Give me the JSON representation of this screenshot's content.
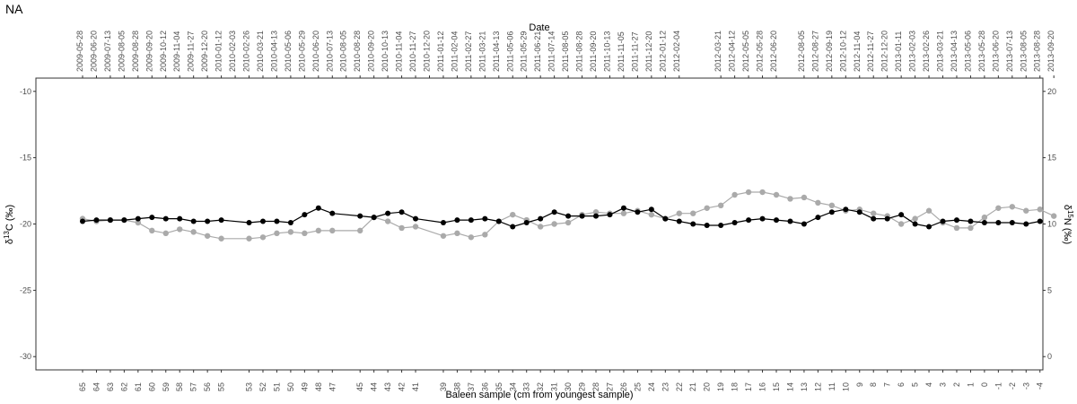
{
  "chart_data": {
    "type": "line",
    "tag": "NA",
    "xlabel": "Baleen sample (cm from youngest sample)",
    "top_axis_label": "Date",
    "ylabel_left": {
      "delta": "δ",
      "sup": "13",
      "rest": "C (‰)"
    },
    "ylabel_right": {
      "delta": "δ",
      "sup": "15",
      "rest": "N (‰)"
    },
    "ylim_left": [
      -31,
      -9
    ],
    "ylim_right": [
      -1,
      21
    ],
    "yticks_left": [
      -10,
      -15,
      -20,
      -25,
      -30
    ],
    "yticks_right": [
      20,
      15,
      10,
      5,
      0
    ],
    "x_ticks": [
      65,
      64,
      63,
      62,
      61,
      60,
      59,
      58,
      57,
      56,
      55,
      53,
      52,
      51,
      50,
      49,
      48,
      47,
      45,
      44,
      43,
      42,
      41,
      39,
      38,
      37,
      36,
      35,
      34,
      33,
      32,
      31,
      30,
      29,
      28,
      27,
      26,
      25,
      24,
      23,
      22,
      21,
      20,
      19,
      18,
      17,
      16,
      15,
      14,
      13,
      12,
      11,
      10,
      9,
      8,
      7,
      6,
      5,
      4,
      3,
      2,
      1,
      0,
      -1,
      -2,
      -3,
      -4
    ],
    "dates": [
      {
        "x": 65,
        "label": "2009-05-28"
      },
      {
        "x": 64,
        "label": "2009-06-20"
      },
      {
        "x": 63,
        "label": "2009-07-13"
      },
      {
        "x": 62,
        "label": "2009-08-05"
      },
      {
        "x": 61,
        "label": "2009-08-28"
      },
      {
        "x": 60,
        "label": "2009-09-20"
      },
      {
        "x": 59,
        "label": "2009-10-12"
      },
      {
        "x": 58,
        "label": "2009-11-04"
      },
      {
        "x": 57,
        "label": "2009-11-27"
      },
      {
        "x": 56,
        "label": "2009-12-20"
      },
      {
        "x": 55,
        "label": "2010-01-12"
      },
      {
        "x": 54,
        "label": "2010-02-03"
      },
      {
        "x": 53,
        "label": "2010-02-26"
      },
      {
        "x": 52,
        "label": "2010-03-21"
      },
      {
        "x": 51,
        "label": "2010-04-13"
      },
      {
        "x": 50,
        "label": "2010-05-06"
      },
      {
        "x": 49,
        "label": "2010-05-29"
      },
      {
        "x": 48,
        "label": "2010-06-20"
      },
      {
        "x": 47,
        "label": "2010-07-13"
      },
      {
        "x": 46,
        "label": "2010-08-05"
      },
      {
        "x": 45,
        "label": "2010-08-28"
      },
      {
        "x": 44,
        "label": "2010-09-20"
      },
      {
        "x": 43,
        "label": "2010-10-13"
      },
      {
        "x": 42,
        "label": "2010-11-04"
      },
      {
        "x": 41,
        "label": "2010-11-27"
      },
      {
        "x": 40,
        "label": "2010-12-20"
      },
      {
        "x": 39,
        "label": "2011-01-12"
      },
      {
        "x": 38,
        "label": "2011-02-04"
      },
      {
        "x": 37,
        "label": "2011-02-27"
      },
      {
        "x": 36,
        "label": "2011-03-21"
      },
      {
        "x": 35,
        "label": "2011-04-13"
      },
      {
        "x": 34,
        "label": "2011-05-06"
      },
      {
        "x": 33,
        "label": "2011-05-29"
      },
      {
        "x": 32,
        "label": "2011-06-21"
      },
      {
        "x": 31,
        "label": "2011-07-14"
      },
      {
        "x": 30,
        "label": "2011-08-05"
      },
      {
        "x": 29,
        "label": "2011-08-28"
      },
      {
        "x": 28,
        "label": "2011-09-20"
      },
      {
        "x": 27,
        "label": "2011-10-13"
      },
      {
        "x": 26,
        "label": "2011-11-05"
      },
      {
        "x": 25,
        "label": "2011-11-27"
      },
      {
        "x": 24,
        "label": "2011-12-20"
      },
      {
        "x": 23,
        "label": "2012-01-12"
      },
      {
        "x": 22,
        "label": "2012-02-04"
      },
      {
        "x": 19,
        "label": "2012-03-21"
      },
      {
        "x": 18,
        "label": "2012-04-12"
      },
      {
        "x": 17,
        "label": "2012-05-05"
      },
      {
        "x": 16,
        "label": "2012-05-28"
      },
      {
        "x": 15,
        "label": "2012-06-20"
      },
      {
        "x": 13,
        "label": "2012-08-05"
      },
      {
        "x": 12,
        "label": "2012-08-27"
      },
      {
        "x": 11,
        "label": "2012-09-19"
      },
      {
        "x": 10,
        "label": "2012-10-12"
      },
      {
        "x": 9,
        "label": "2012-11-04"
      },
      {
        "x": 8,
        "label": "2012-11-27"
      },
      {
        "x": 7,
        "label": "2012-12-20"
      },
      {
        "x": 6,
        "label": "2013-01-11"
      },
      {
        "x": 5,
        "label": "2013-02-03"
      },
      {
        "x": 4,
        "label": "2013-02-26"
      },
      {
        "x": 3,
        "label": "2013-03-21"
      },
      {
        "x": 2,
        "label": "2013-04-13"
      },
      {
        "x": 1,
        "label": "2013-05-06"
      },
      {
        "x": 0,
        "label": "2013-05-28"
      },
      {
        "x": -1,
        "label": "2013-06-20"
      },
      {
        "x": -2,
        "label": "2013-07-13"
      },
      {
        "x": -3,
        "label": "2013-08-05"
      },
      {
        "x": -4,
        "label": "2013-08-28"
      },
      {
        "x": -5,
        "label": "2013-09-20"
      }
    ],
    "series": [
      {
        "key": "d13c",
        "axis": "left",
        "color": "#000000",
        "points": [
          [
            65,
            -19.8
          ],
          [
            64,
            -19.7
          ],
          [
            63,
            -19.7
          ],
          [
            62,
            -19.7
          ],
          [
            61,
            -19.6
          ],
          [
            60,
            -19.5
          ],
          [
            59,
            -19.6
          ],
          [
            58,
            -19.6
          ],
          [
            57,
            -19.8
          ],
          [
            56,
            -19.8
          ],
          [
            55,
            -19.7
          ],
          [
            53,
            -19.9
          ],
          [
            52,
            -19.8
          ],
          [
            51,
            -19.8
          ],
          [
            50,
            -19.9
          ],
          [
            49,
            -19.3
          ],
          [
            48,
            -18.8
          ],
          [
            47,
            -19.2
          ],
          [
            45,
            -19.4
          ],
          [
            44,
            -19.5
          ],
          [
            43,
            -19.2
          ],
          [
            42,
            -19.1
          ],
          [
            41,
            -19.6
          ],
          [
            39,
            -19.9
          ],
          [
            38,
            -19.7
          ],
          [
            37,
            -19.7
          ],
          [
            36,
            -19.6
          ],
          [
            35,
            -19.8
          ],
          [
            34,
            -20.2
          ],
          [
            33,
            -19.9
          ],
          [
            32,
            -19.6
          ],
          [
            31,
            -19.1
          ],
          [
            30,
            -19.4
          ],
          [
            29,
            -19.4
          ],
          [
            28,
            -19.4
          ],
          [
            27,
            -19.3
          ],
          [
            26,
            -18.8
          ],
          [
            25,
            -19.1
          ],
          [
            24,
            -18.9
          ],
          [
            23,
            -19.6
          ],
          [
            22,
            -19.8
          ],
          [
            21,
            -20.0
          ],
          [
            20,
            -20.1
          ],
          [
            19,
            -20.1
          ],
          [
            18,
            -19.9
          ],
          [
            17,
            -19.7
          ],
          [
            16,
            -19.6
          ],
          [
            15,
            -19.7
          ],
          [
            14,
            -19.8
          ],
          [
            13,
            -20.0
          ],
          [
            12,
            -19.5
          ],
          [
            11,
            -19.1
          ],
          [
            10,
            -18.9
          ],
          [
            9,
            -19.1
          ],
          [
            8,
            -19.6
          ],
          [
            7,
            -19.6
          ],
          [
            6,
            -19.3
          ],
          [
            5,
            -20.0
          ],
          [
            4,
            -20.2
          ],
          [
            3,
            -19.8
          ],
          [
            2,
            -19.7
          ],
          [
            1,
            -19.8
          ],
          [
            0,
            -19.9
          ],
          [
            -1,
            -19.9
          ],
          [
            -2,
            -19.9
          ],
          [
            -3,
            -20.0
          ],
          [
            -4,
            -19.8
          ]
        ]
      },
      {
        "key": "d15n",
        "axis": "right",
        "color": "#aaaaaa",
        "points": [
          [
            65,
            10.4
          ],
          [
            64,
            10.2
          ],
          [
            63,
            10.3
          ],
          [
            62,
            10.3
          ],
          [
            61,
            10.1
          ],
          [
            60,
            9.5
          ],
          [
            59,
            9.3
          ],
          [
            58,
            9.6
          ],
          [
            57,
            9.4
          ],
          [
            56,
            9.1
          ],
          [
            55,
            8.9
          ],
          [
            53,
            8.9
          ],
          [
            52,
            9.0
          ],
          [
            51,
            9.3
          ],
          [
            50,
            9.4
          ],
          [
            49,
            9.3
          ],
          [
            48,
            9.5
          ],
          [
            47,
            9.5
          ],
          [
            45,
            9.5
          ],
          [
            44,
            10.5
          ],
          [
            43,
            10.2
          ],
          [
            42,
            9.7
          ],
          [
            41,
            9.8
          ],
          [
            39,
            9.1
          ],
          [
            38,
            9.3
          ],
          [
            37,
            9.0
          ],
          [
            36,
            9.2
          ],
          [
            35,
            10.2
          ],
          [
            34,
            10.7
          ],
          [
            33,
            10.3
          ],
          [
            32,
            9.8
          ],
          [
            31,
            10.0
          ],
          [
            30,
            10.1
          ],
          [
            29,
            10.7
          ],
          [
            28,
            10.9
          ],
          [
            27,
            10.8
          ],
          [
            26,
            10.8
          ],
          [
            25,
            11.0
          ],
          [
            24,
            10.7
          ],
          [
            23,
            10.4
          ],
          [
            22,
            10.8
          ],
          [
            21,
            10.8
          ],
          [
            20,
            11.2
          ],
          [
            19,
            11.4
          ],
          [
            18,
            12.2
          ],
          [
            17,
            12.4
          ],
          [
            16,
            12.4
          ],
          [
            15,
            12.2
          ],
          [
            14,
            11.9
          ],
          [
            13,
            12.0
          ],
          [
            12,
            11.6
          ],
          [
            11,
            11.4
          ],
          [
            10,
            11.0
          ],
          [
            9,
            11.1
          ],
          [
            8,
            10.8
          ],
          [
            7,
            10.6
          ],
          [
            6,
            10.0
          ],
          [
            5,
            10.4
          ],
          [
            4,
            11.0
          ],
          [
            3,
            10.1
          ],
          [
            2,
            9.7
          ],
          [
            1,
            9.7
          ],
          [
            0,
            10.5
          ],
          [
            -1,
            11.2
          ],
          [
            -2,
            11.3
          ],
          [
            -3,
            11.0
          ],
          [
            -4,
            11.1
          ],
          [
            -5,
            10.6
          ]
        ]
      }
    ]
  }
}
